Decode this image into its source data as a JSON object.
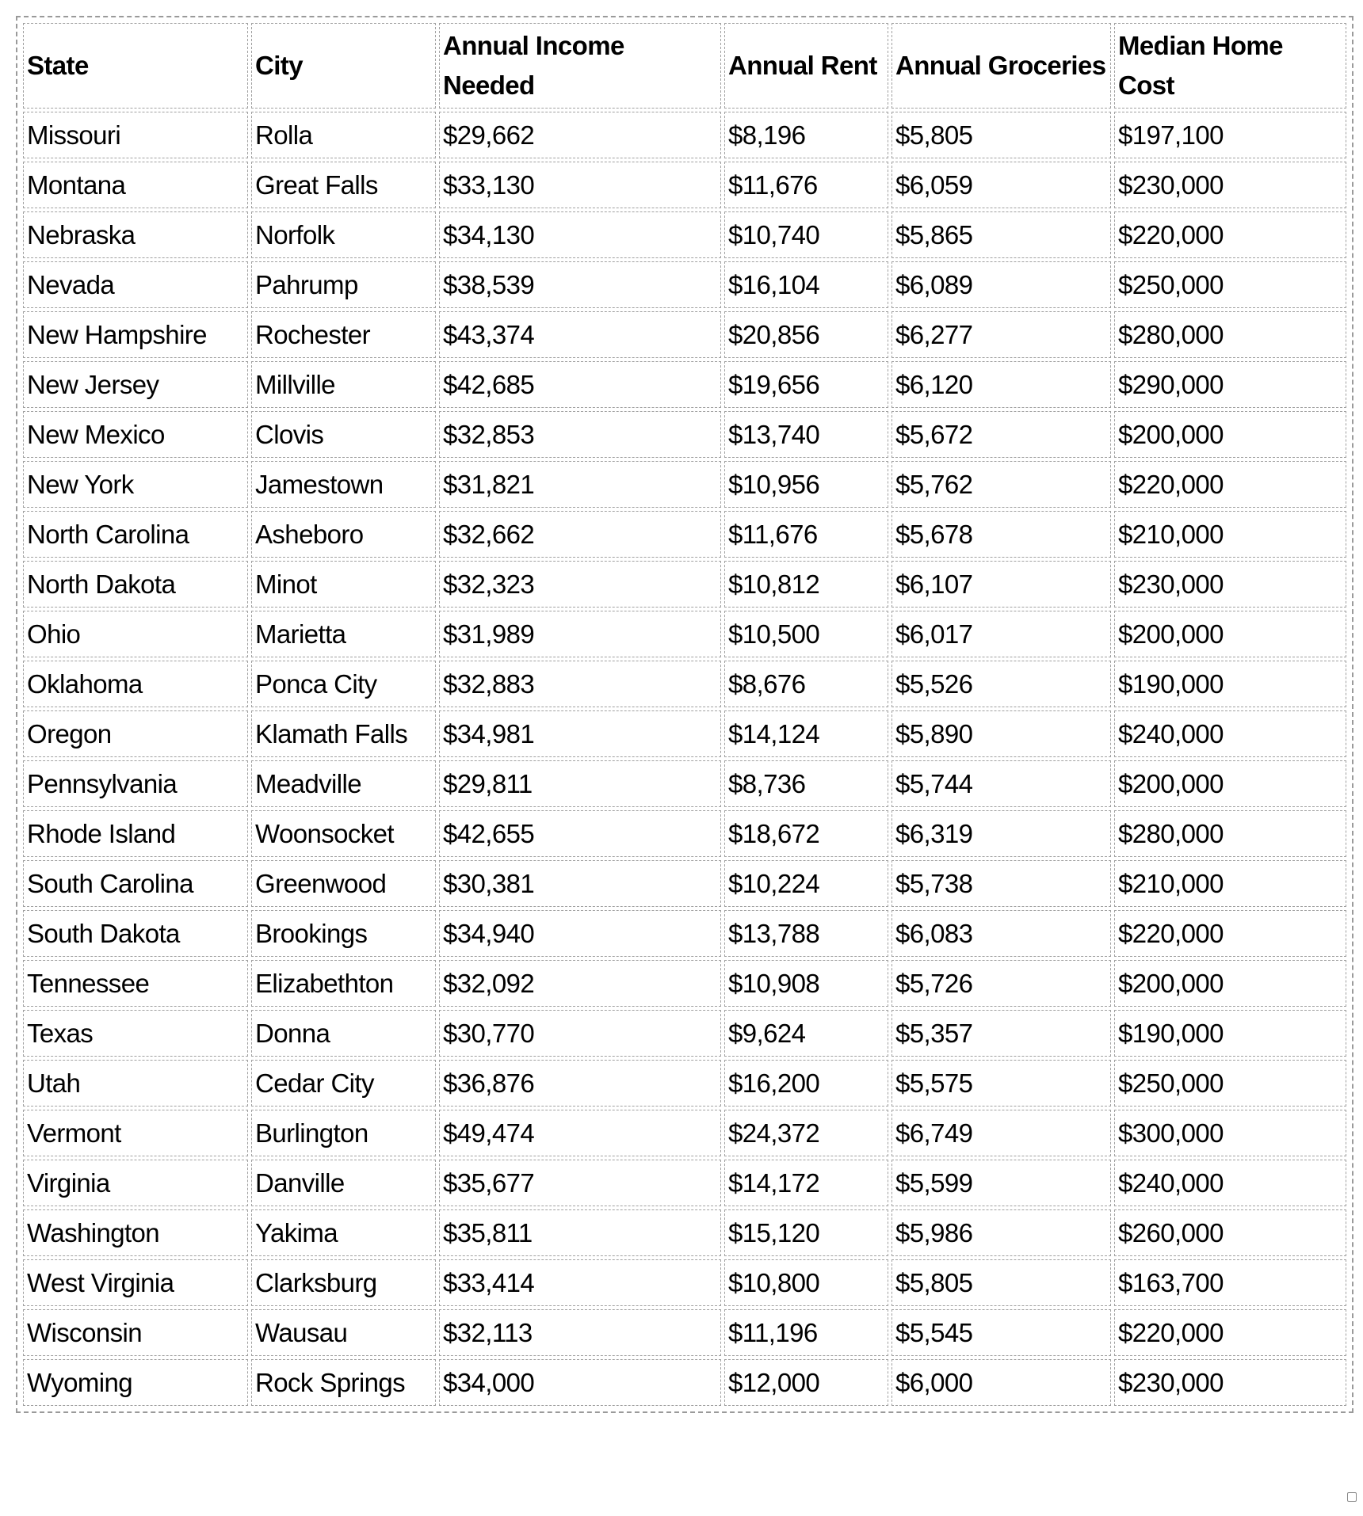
{
  "table": {
    "headers": [
      "State",
      "City",
      "Annual Income Needed",
      "Annual Rent",
      "Annual Groceries",
      "Median Home Cost"
    ],
    "rows": [
      [
        "Missouri",
        "Rolla",
        "$29,662",
        "$8,196",
        "$5,805",
        "$197,100"
      ],
      [
        "Montana",
        "Great Falls",
        "$33,130",
        "$11,676",
        "$6,059",
        "$230,000"
      ],
      [
        "Nebraska",
        "Norfolk",
        "$34,130",
        "$10,740",
        "$5,865",
        "$220,000"
      ],
      [
        "Nevada",
        "Pahrump",
        "$38,539",
        "$16,104",
        "$6,089",
        "$250,000"
      ],
      [
        "New Hampshire",
        "Rochester",
        "$43,374",
        "$20,856",
        "$6,277",
        "$280,000"
      ],
      [
        "New Jersey",
        "Millville",
        "$42,685",
        "$19,656",
        "$6,120",
        "$290,000"
      ],
      [
        "New Mexico",
        "Clovis",
        "$32,853",
        "$13,740",
        "$5,672",
        "$200,000"
      ],
      [
        "New York",
        "Jamestown",
        "$31,821",
        "$10,956",
        "$5,762",
        "$220,000"
      ],
      [
        "North Carolina",
        "Asheboro",
        "$32,662",
        "$11,676",
        "$5,678",
        "$210,000"
      ],
      [
        "North Dakota",
        "Minot",
        "$32,323",
        "$10,812",
        "$6,107",
        "$230,000"
      ],
      [
        "Ohio",
        "Marietta",
        "$31,989",
        "$10,500",
        "$6,017",
        "$200,000"
      ],
      [
        "Oklahoma",
        "Ponca City",
        "$32,883",
        "$8,676",
        "$5,526",
        "$190,000"
      ],
      [
        "Oregon",
        "Klamath Falls",
        "$34,981",
        "$14,124",
        "$5,890",
        "$240,000"
      ],
      [
        "Pennsylvania",
        "Meadville",
        "$29,811",
        "$8,736",
        "$5,744",
        "$200,000"
      ],
      [
        "Rhode Island",
        "Woonsocket",
        "$42,655",
        "$18,672",
        "$6,319",
        "$280,000"
      ],
      [
        "South Carolina",
        "Greenwood",
        "$30,381",
        "$10,224",
        "$5,738",
        "$210,000"
      ],
      [
        "South Dakota",
        "Brookings",
        "$34,940",
        "$13,788",
        "$6,083",
        "$220,000"
      ],
      [
        "Tennessee",
        "Elizabethton",
        "$32,092",
        "$10,908",
        "$5,726",
        "$200,000"
      ],
      [
        "Texas",
        "Donna",
        "$30,770",
        "$9,624",
        "$5,357",
        "$190,000"
      ],
      [
        "Utah",
        "Cedar City",
        "$36,876",
        "$16,200",
        "$5,575",
        "$250,000"
      ],
      [
        "Vermont",
        "Burlington",
        "$49,474",
        "$24,372",
        "$6,749",
        "$300,000"
      ],
      [
        "Virginia",
        "Danville",
        "$35,677",
        "$14,172",
        "$5,599",
        "$240,000"
      ],
      [
        "Washington",
        "Yakima",
        "$35,811",
        "$15,120",
        "$5,986",
        "$260,000"
      ],
      [
        "West Virginia",
        "Clarksburg",
        "$33,414",
        "$10,800",
        "$5,805",
        "$163,700"
      ],
      [
        "Wisconsin",
        "Wausau",
        "$32,113",
        "$11,196",
        "$5,545",
        "$220,000"
      ],
      [
        "Wyoming",
        "Rock Springs",
        "$34,000",
        "$12,000",
        "$6,000",
        "$230,000"
      ]
    ]
  }
}
